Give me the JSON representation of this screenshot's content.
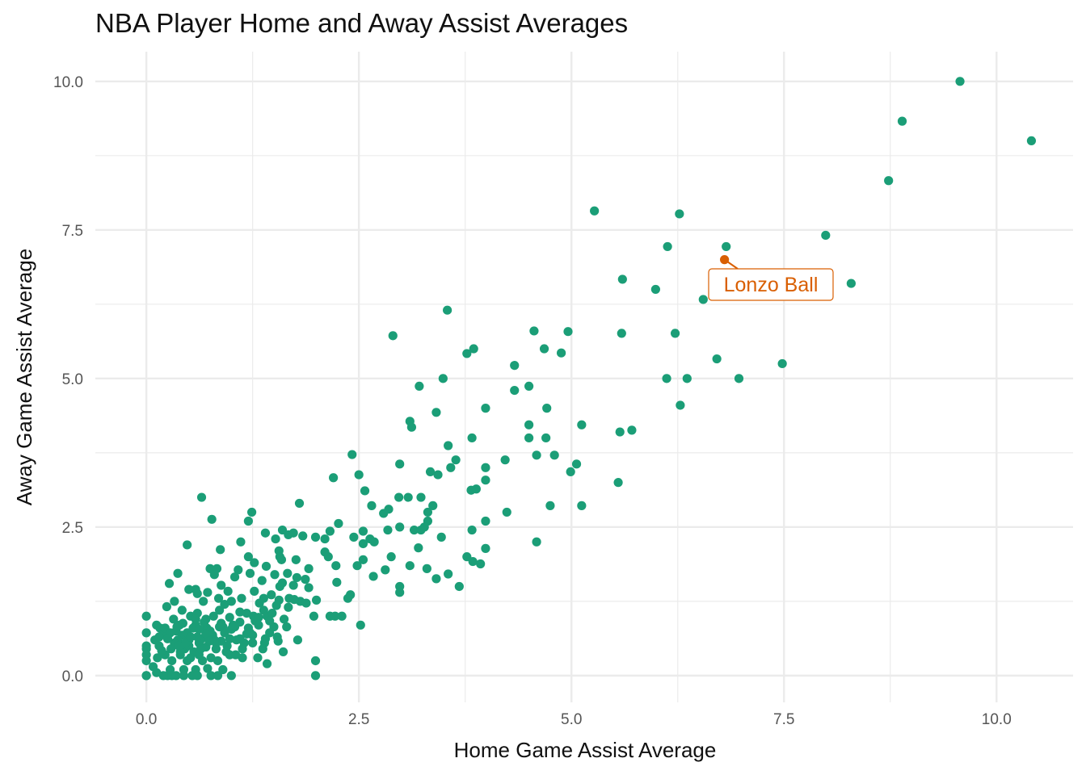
{
  "chart_data": {
    "type": "scatter",
    "title": "NBA Player Home and Away Assist Averages",
    "xlabel": "Home Game Assist Average",
    "ylabel": "Away Game Assist Average",
    "xlim": [
      -0.6,
      10.9
    ],
    "ylim": [
      -0.45,
      10.5
    ],
    "xticks": [
      0,
      2.5,
      5,
      7.5,
      10
    ],
    "yticks": [
      0,
      2.5,
      5,
      7.5,
      10
    ],
    "xtick_labels": [
      "0.0",
      "2.5",
      "5.0",
      "7.5",
      "10.0"
    ],
    "ytick_labels": [
      "0.0",
      "2.5",
      "5.0",
      "7.5",
      "10.0"
    ],
    "grid": true,
    "colors": {
      "points": "#1b9e77",
      "highlight": "#d95f02",
      "grid": "#ebebeb"
    },
    "highlight": {
      "label": "Lonzo Ball",
      "x": 6.8,
      "y": 7.0
    },
    "points": [
      [
        9.57,
        10.0
      ],
      [
        8.89,
        9.33
      ],
      [
        10.41,
        9.0
      ],
      [
        8.73,
        8.33
      ],
      [
        5.27,
        7.82
      ],
      [
        6.27,
        7.77
      ],
      [
        7.99,
        7.41
      ],
      [
        6.13,
        7.22
      ],
      [
        6.82,
        7.22
      ],
      [
        5.6,
        6.67
      ],
      [
        5.99,
        6.5
      ],
      [
        8.29,
        6.6
      ],
      [
        6.55,
        6.33
      ],
      [
        3.54,
        6.15
      ],
      [
        2.9,
        5.72
      ],
      [
        4.56,
        5.8
      ],
      [
        4.96,
        5.79
      ],
      [
        5.59,
        5.76
      ],
      [
        6.22,
        5.76
      ],
      [
        3.85,
        5.5
      ],
      [
        3.77,
        5.42
      ],
      [
        4.68,
        5.5
      ],
      [
        4.88,
        5.43
      ],
      [
        4.33,
        5.22
      ],
      [
        6.71,
        5.33
      ],
      [
        7.48,
        5.25
      ],
      [
        3.49,
        5.0
      ],
      [
        6.12,
        5.0
      ],
      [
        6.36,
        5.0
      ],
      [
        6.97,
        5.0
      ],
      [
        3.21,
        4.87
      ],
      [
        4.5,
        4.87
      ],
      [
        4.33,
        4.8
      ],
      [
        6.28,
        4.55
      ],
      [
        3.99,
        4.5
      ],
      [
        4.71,
        4.5
      ],
      [
        3.41,
        4.43
      ],
      [
        3.1,
        4.28
      ],
      [
        3.12,
        4.18
      ],
      [
        4.5,
        4.22
      ],
      [
        5.12,
        4.22
      ],
      [
        5.57,
        4.1
      ],
      [
        5.71,
        4.13
      ],
      [
        3.83,
        4.0
      ],
      [
        4.5,
        4.0
      ],
      [
        4.7,
        4.0
      ],
      [
        3.55,
        3.87
      ],
      [
        2.42,
        3.72
      ],
      [
        4.59,
        3.71
      ],
      [
        4.8,
        3.71
      ],
      [
        3.64,
        3.63
      ],
      [
        4.22,
        3.63
      ],
      [
        2.98,
        3.56
      ],
      [
        5.06,
        3.56
      ],
      [
        3.99,
        3.5
      ],
      [
        3.58,
        3.5
      ],
      [
        3.34,
        3.43
      ],
      [
        4.99,
        3.43
      ],
      [
        2.5,
        3.38
      ],
      [
        3.43,
        3.38
      ],
      [
        2.2,
        3.33
      ],
      [
        3.99,
        3.29
      ],
      [
        3.88,
        3.14
      ],
      [
        3.82,
        3.12
      ],
      [
        5.55,
        3.25
      ],
      [
        2.57,
        3.11
      ],
      [
        0.65,
        3.0
      ],
      [
        2.97,
        3.0
      ],
      [
        3.08,
        3.0
      ],
      [
        3.23,
        3.0
      ],
      [
        3.37,
        2.86
      ],
      [
        5.12,
        2.86
      ],
      [
        2.65,
        2.86
      ],
      [
        4.75,
        2.86
      ],
      [
        1.8,
        2.9
      ],
      [
        2.79,
        2.73
      ],
      [
        2.85,
        2.8
      ],
      [
        4.24,
        2.75
      ],
      [
        1.24,
        2.75
      ],
      [
        3.31,
        2.75
      ],
      [
        0.77,
        2.63
      ],
      [
        1.2,
        2.6
      ],
      [
        2.26,
        2.56
      ],
      [
        3.31,
        2.6
      ],
      [
        3.99,
        2.6
      ],
      [
        2.98,
        2.5
      ],
      [
        3.15,
        2.45
      ],
      [
        3.27,
        2.5
      ],
      [
        3.83,
        2.45
      ],
      [
        1.6,
        2.45
      ],
      [
        1.73,
        2.4
      ],
      [
        2.16,
        2.43
      ],
      [
        2.55,
        2.43
      ],
      [
        2.84,
        2.45
      ],
      [
        3.23,
        2.45
      ],
      [
        3.47,
        2.33
      ],
      [
        1.4,
        2.4
      ],
      [
        1.67,
        2.37
      ],
      [
        1.99,
        2.33
      ],
      [
        2.44,
        2.33
      ],
      [
        2.63,
        2.3
      ],
      [
        1.11,
        2.25
      ],
      [
        1.52,
        2.3
      ],
      [
        1.84,
        2.35
      ],
      [
        2.1,
        2.3
      ],
      [
        4.59,
        2.25
      ],
      [
        2.55,
        2.22
      ],
      [
        2.68,
        2.25
      ],
      [
        0.48,
        2.2
      ],
      [
        0.87,
        2.12
      ],
      [
        1.56,
        2.1
      ],
      [
        3.2,
        2.15
      ],
      [
        3.99,
        2.14
      ],
      [
        2.14,
        2.0
      ],
      [
        1.2,
        2.0
      ],
      [
        1.57,
        2.0
      ],
      [
        1.59,
        1.95
      ],
      [
        1.76,
        1.95
      ],
      [
        2.88,
        2.0
      ],
      [
        3.77,
        2.0
      ],
      [
        3.84,
        1.92
      ],
      [
        3.93,
        1.88
      ],
      [
        2.1,
        2.08
      ],
      [
        1.27,
        1.9
      ],
      [
        1.41,
        1.84
      ],
      [
        1.91,
        1.8
      ],
      [
        2.23,
        1.85
      ],
      [
        2.48,
        1.85
      ],
      [
        2.55,
        1.95
      ],
      [
        3.1,
        1.85
      ],
      [
        3.3,
        1.8
      ],
      [
        3.41,
        1.63
      ],
      [
        3.55,
        1.71
      ],
      [
        2.81,
        1.78
      ],
      [
        0.75,
        1.8
      ],
      [
        0.83,
        1.8
      ],
      [
        1.08,
        1.78
      ],
      [
        1.22,
        1.72
      ],
      [
        1.51,
        1.7
      ],
      [
        1.66,
        1.72
      ],
      [
        1.77,
        1.65
      ],
      [
        1.87,
        1.62
      ],
      [
        2.24,
        1.57
      ],
      [
        2.67,
        1.67
      ],
      [
        0.37,
        1.72
      ],
      [
        0.8,
        1.7
      ],
      [
        0.88,
        1.52
      ],
      [
        1.04,
        1.66
      ],
      [
        1.36,
        1.6
      ],
      [
        1.6,
        1.56
      ],
      [
        1.73,
        1.52
      ],
      [
        1.91,
        1.48
      ],
      [
        1.57,
        1.5
      ],
      [
        2.98,
        1.5
      ],
      [
        3.68,
        1.5
      ],
      [
        0.27,
        1.55
      ],
      [
        0.58,
        1.45
      ],
      [
        0.72,
        1.4
      ],
      [
        0.96,
        1.42
      ],
      [
        1.27,
        1.42
      ],
      [
        1.47,
        1.36
      ],
      [
        0.85,
        1.3
      ],
      [
        0.5,
        1.45
      ],
      [
        0.6,
        1.38
      ],
      [
        1.12,
        1.3
      ],
      [
        1.68,
        1.3
      ],
      [
        1.81,
        1.25
      ],
      [
        1.88,
        1.22
      ],
      [
        1.38,
        1.3
      ],
      [
        1.33,
        1.22
      ],
      [
        0.92,
        1.2
      ],
      [
        0.33,
        1.25
      ],
      [
        0.42,
        1.1
      ],
      [
        2.37,
        1.3
      ],
      [
        2.98,
        1.4
      ],
      [
        1.0,
        1.25
      ],
      [
        1.56,
        1.27
      ],
      [
        1.74,
        1.28
      ],
      [
        2.0,
        1.27
      ],
      [
        2.4,
        1.36
      ],
      [
        0.67,
        1.25
      ],
      [
        0.52,
        1.0
      ],
      [
        0.79,
        1.0
      ],
      [
        0.98,
        0.98
      ],
      [
        1.1,
        1.07
      ],
      [
        1.38,
        1.1
      ],
      [
        1.53,
        1.18
      ],
      [
        1.67,
        1.15
      ],
      [
        2.22,
        1.0
      ],
      [
        1.97,
        1.0
      ],
      [
        2.16,
        1.0
      ],
      [
        2.3,
        1.0
      ],
      [
        0.6,
        1.05
      ],
      [
        0.86,
        1.1
      ],
      [
        0.0,
        1.0
      ],
      [
        0.24,
        1.16
      ],
      [
        1.26,
        1.0
      ],
      [
        1.42,
        1.0
      ],
      [
        0.7,
        0.95
      ],
      [
        0.32,
        0.95
      ],
      [
        0.16,
        0.8
      ],
      [
        0.39,
        0.85
      ],
      [
        0.58,
        0.85
      ],
      [
        0.71,
        0.8
      ],
      [
        0.9,
        0.82
      ],
      [
        1.04,
        0.82
      ],
      [
        1.32,
        0.85
      ],
      [
        1.5,
        0.82
      ],
      [
        1.65,
        0.82
      ],
      [
        2.52,
        0.85
      ],
      [
        0.1,
        0.6
      ],
      [
        0.35,
        0.75
      ],
      [
        0.42,
        0.68
      ],
      [
        0.5,
        0.6
      ],
      [
        0.78,
        0.68
      ],
      [
        0.98,
        0.62
      ],
      [
        1.22,
        0.72
      ],
      [
        1.45,
        0.72
      ],
      [
        1.54,
        0.65
      ],
      [
        1.78,
        0.6
      ],
      [
        0.0,
        0.72
      ],
      [
        0.2,
        0.7
      ],
      [
        0.37,
        0.6
      ],
      [
        0.62,
        0.55
      ],
      [
        0.88,
        0.58
      ],
      [
        1.06,
        0.6
      ],
      [
        1.25,
        0.55
      ],
      [
        1.39,
        0.55
      ],
      [
        0.15,
        0.5
      ],
      [
        0.29,
        0.45
      ],
      [
        0.45,
        0.45
      ],
      [
        0.56,
        0.4
      ],
      [
        0.7,
        0.48
      ],
      [
        0.82,
        0.45
      ],
      [
        0.95,
        0.5
      ],
      [
        1.13,
        0.45
      ],
      [
        1.37,
        0.45
      ],
      [
        1.61,
        0.4
      ],
      [
        0.0,
        0.5
      ],
      [
        0.0,
        0.45
      ],
      [
        0.22,
        0.35
      ],
      [
        0.4,
        0.35
      ],
      [
        0.62,
        0.35
      ],
      [
        0.76,
        0.3
      ],
      [
        0.98,
        0.35
      ],
      [
        1.13,
        0.3
      ],
      [
        1.31,
        0.3
      ],
      [
        0.0,
        0.35
      ],
      [
        0.13,
        0.3
      ],
      [
        0.3,
        0.25
      ],
      [
        0.48,
        0.25
      ],
      [
        0.66,
        0.25
      ],
      [
        0.84,
        0.25
      ],
      [
        1.42,
        0.2
      ],
      [
        1.99,
        0.25
      ],
      [
        0.0,
        0.25
      ],
      [
        0.08,
        0.15
      ],
      [
        0.28,
        0.1
      ],
      [
        0.44,
        0.1
      ],
      [
        0.58,
        0.1
      ],
      [
        0.72,
        0.12
      ],
      [
        0.9,
        0.1
      ],
      [
        0.0,
        0.0
      ],
      [
        0.25,
        0.0
      ],
      [
        0.3,
        0.0
      ],
      [
        0.44,
        0.0
      ],
      [
        0.54,
        0.0
      ],
      [
        0.6,
        0.0
      ],
      [
        0.76,
        0.0
      ],
      [
        0.84,
        0.0
      ],
      [
        1.0,
        0.0
      ],
      [
        1.99,
        0.0
      ],
      [
        0.12,
        0.05
      ],
      [
        0.0,
        0.0
      ],
      [
        0.35,
        0.0
      ],
      [
        0.2,
        0.0
      ],
      [
        0.22,
        0.8
      ],
      [
        0.15,
        0.65
      ],
      [
        0.28,
        0.72
      ],
      [
        0.33,
        0.55
      ],
      [
        0.48,
        0.72
      ],
      [
        0.55,
        0.8
      ],
      [
        0.65,
        0.62
      ],
      [
        0.75,
        0.75
      ],
      [
        0.82,
        0.55
      ],
      [
        0.92,
        0.72
      ],
      [
        1.1,
        0.9
      ],
      [
        1.18,
        1.05
      ],
      [
        0.43,
        0.88
      ],
      [
        0.5,
        0.5
      ],
      [
        0.58,
        0.95
      ],
      [
        0.68,
        0.9
      ],
      [
        0.8,
        0.6
      ],
      [
        0.88,
        0.88
      ],
      [
        1.0,
        0.78
      ],
      [
        1.1,
        0.62
      ],
      [
        1.2,
        0.8
      ],
      [
        1.28,
        0.92
      ],
      [
        1.32,
        0.98
      ],
      [
        1.45,
        0.92
      ],
      [
        0.4,
        0.4
      ],
      [
        0.52,
        0.3
      ],
      [
        0.6,
        0.65
      ],
      [
        0.7,
        0.7
      ],
      [
        0.12,
        0.85
      ],
      [
        0.18,
        0.42
      ],
      [
        0.25,
        0.62
      ],
      [
        0.36,
        0.82
      ],
      [
        0.94,
        0.4
      ],
      [
        1.05,
        0.35
      ],
      [
        1.15,
        0.55
      ],
      [
        1.25,
        0.68
      ],
      [
        1.4,
        0.62
      ],
      [
        1.55,
        0.58
      ],
      [
        0.46,
        0.55
      ],
      [
        0.62,
        0.78
      ],
      [
        0.74,
        0.58
      ],
      [
        0.86,
        0.82
      ],
      [
        1.02,
        0.85
      ],
      [
        1.18,
        0.7
      ],
      [
        1.48,
        1.05
      ],
      [
        1.62,
        0.95
      ],
      [
        0.38,
        0.5
      ],
      [
        0.52,
        0.65
      ],
      [
        0.64,
        0.45
      ]
    ]
  }
}
